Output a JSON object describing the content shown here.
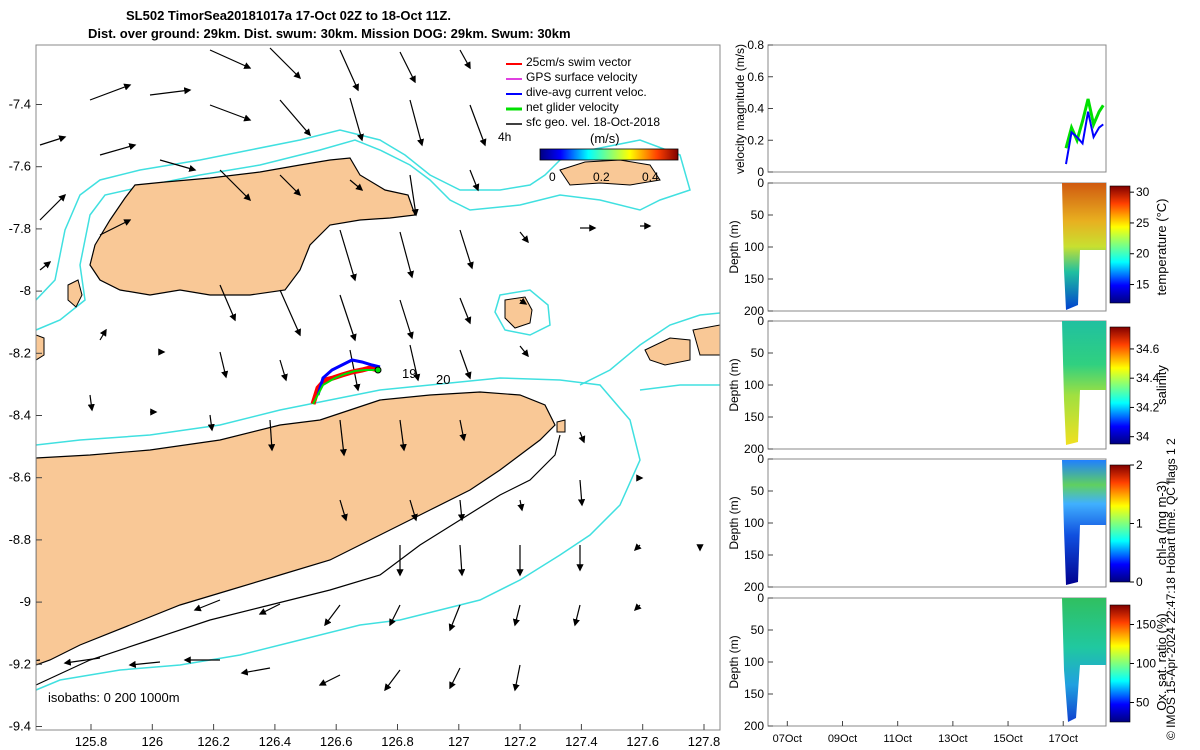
{
  "title": {
    "line1": "SL502 TimorSea20181017a 17-Oct 02Z to 18-Oct 11Z.",
    "line2": "Dist. over ground: 29km. Dist. swum: 30km. Mission DOG: 29km. Swum: 30km"
  },
  "credit": "© IMOS 15-Apr-2024 22:47:18 Hobart time. QC flags 1  2",
  "colors": {
    "land": "#f9c896",
    "coast": "#000000",
    "isobath200": "#000000",
    "isobath1000": "#40e0e0",
    "swim": "#ff0000",
    "gps": "#e040e0",
    "diveavg": "#0000ff",
    "net": "#00e000"
  },
  "map": {
    "xticks": [
      "125.8",
      "126",
      "126.2",
      "126.4",
      "126.6",
      "126.8",
      "127",
      "127.2",
      "127.4",
      "127.6",
      "127.8"
    ],
    "yticks": [
      "-7.4",
      "-7.6",
      "-7.8",
      "-8",
      "-8.2",
      "-8.4",
      "-8.6",
      "-8.8",
      "-9",
      "-9.2",
      "-9.4"
    ],
    "legend": [
      "25cm/s swim vector",
      "GPS surface velocity",
      "dive-avg current veloc.",
      "net glider velocity",
      "sfc geo. vel. 18-Oct-2018"
    ],
    "colorbar_label": "(m/s)",
    "colorbar_ticks": [
      "0",
      "0.2",
      "0.4"
    ],
    "time_label": "4h",
    "day_labels": [
      "19",
      "20"
    ],
    "isobath_text": "isobaths: 0   200  1000m"
  },
  "panels": {
    "time_ticks": [
      "07Oct",
      "09Oct",
      "11Oct",
      "13Oct",
      "15Oct",
      "17Oct"
    ],
    "velocity": {
      "ylabel": "velocity magnitude (m/s)",
      "yticks": [
        "0",
        "0.2",
        "0.4",
        "0.6",
        "0.8"
      ]
    },
    "depth_ticks": [
      "0",
      "50",
      "100",
      "150",
      "200"
    ],
    "depth_label": "Depth (m)",
    "profiles": [
      {
        "key": "temperature",
        "label": "temperature (°C)",
        "ticks": [
          "15",
          "20",
          "25",
          "30"
        ]
      },
      {
        "key": "salinity",
        "label": "salinity",
        "ticks": [
          "34",
          "34.2",
          "34.4",
          "34.6"
        ]
      },
      {
        "key": "chla",
        "label": "chl-a (mg m-3)",
        "ticks": [
          "0",
          "1",
          "2"
        ]
      },
      {
        "key": "oxygen",
        "label": "Ox. sat. ratio (%)",
        "ticks": [
          "50",
          "100",
          "150"
        ]
      }
    ]
  },
  "chart_data": [
    {
      "type": "scatter",
      "title": "SL502 TimorSea20181017a 17-Oct 02Z to 18-Oct 11Z.",
      "subtitle": "Dist. over ground: 29km. Dist. swum: 30km. Mission DOG: 29km. Swum: 30km",
      "xlim": [
        125.62,
        127.84
      ],
      "ylim": [
        -9.42,
        -7.27
      ],
      "glider_track": {
        "lon": [
          126.52,
          126.55,
          126.58,
          126.61,
          126.64,
          126.68,
          126.71,
          126.73
        ],
        "lat": [
          -8.34,
          -8.31,
          -8.29,
          -8.28,
          -8.27,
          -8.26,
          -8.26,
          -8.25
        ]
      },
      "series": [
        "25cm/s swim vector",
        "GPS surface velocity",
        "dive-avg current veloc.",
        "net glider velocity",
        "sfc geo. vel. 18-Oct-2018"
      ]
    },
    {
      "type": "line",
      "ylabel": "velocity magnitude (m/s)",
      "ylim": [
        0,
        0.8
      ],
      "x_day_of_october": [
        17.1,
        17.3,
        17.5,
        17.7,
        17.9,
        18.1,
        18.3,
        18.45
      ],
      "series": [
        {
          "name": "net glider velocity",
          "values": [
            0.15,
            0.28,
            0.2,
            0.32,
            0.46,
            0.3,
            0.38,
            0.42
          ]
        },
        {
          "name": "dive-avg current veloc.",
          "values": [
            0.05,
            0.25,
            0.22,
            0.18,
            0.38,
            0.22,
            0.28,
            0.3
          ]
        }
      ]
    },
    {
      "type": "heatmap",
      "label": "temperature (°C)",
      "ylabel": "Depth (m)",
      "ylim": [
        200,
        0
      ],
      "clim": [
        12,
        31
      ]
    },
    {
      "type": "heatmap",
      "label": "salinity",
      "ylabel": "Depth (m)",
      "ylim": [
        200,
        0
      ],
      "clim": [
        33.95,
        34.75
      ]
    },
    {
      "type": "heatmap",
      "label": "chl-a (mg m-3)",
      "ylabel": "Depth (m)",
      "ylim": [
        200,
        0
      ],
      "clim": [
        0,
        2
      ]
    },
    {
      "type": "heatmap",
      "label": "Ox. sat. ratio (%)",
      "ylabel": "Depth (m)",
      "ylim": [
        200,
        0
      ],
      "clim": [
        25,
        175
      ]
    }
  ]
}
